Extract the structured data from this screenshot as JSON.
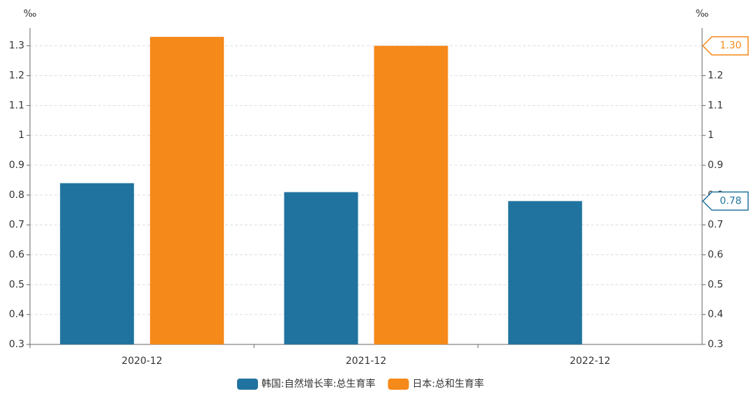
{
  "chart_data": {
    "type": "bar",
    "ylabel": "‰",
    "y2label": "‰",
    "categories": [
      "2020-12",
      "2021-12",
      "2022-12"
    ],
    "series": [
      {
        "name": "韩国:自然增长率:总生育率",
        "color": "#21739f",
        "values": [
          0.84,
          0.81,
          0.78
        ],
        "value_labels": [
          null,
          null,
          "0.78"
        ]
      },
      {
        "name": "日本:总和生育率",
        "color": "#f5891a",
        "values": [
          1.33,
          1.3,
          null
        ],
        "value_labels": [
          null,
          "1.30",
          null
        ]
      }
    ],
    "ylim": [
      0.3,
      1.36
    ],
    "yticks": [
      0.3,
      0.4,
      0.5,
      0.6,
      0.7,
      0.8,
      0.9,
      1,
      1.1,
      1.2,
      1.3
    ],
    "y2lim": [
      0.3,
      1.36
    ],
    "y2ticks": [
      0.3,
      0.4,
      0.5,
      0.6,
      0.7,
      0.8,
      0.9,
      1,
      1.1,
      1.2,
      1.3
    ],
    "grid": true,
    "legend": "bottom"
  }
}
